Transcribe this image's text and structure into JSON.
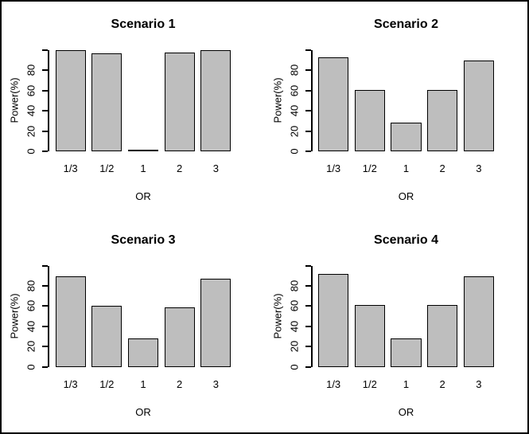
{
  "figure": {
    "background": "#ffffff",
    "frame_color": "#000000",
    "bar_fill": "#bebebe",
    "bar_border": "#000000",
    "text_color": "#000000"
  },
  "chart_data": [
    {
      "type": "bar",
      "title": "Scenario 1",
      "categories": [
        "1/3",
        "1/2",
        "1",
        "2",
        "3"
      ],
      "values": [
        100,
        97,
        1,
        98,
        100
      ],
      "xlabel": "OR",
      "ylabel": "Power(%)",
      "ylim": [
        0,
        100
      ],
      "yticks": [
        0,
        20,
        40,
        60,
        80
      ],
      "grid": false,
      "legend": null
    },
    {
      "type": "bar",
      "title": "Scenario 2",
      "categories": [
        "1/3",
        "1/2",
        "1",
        "2",
        "3"
      ],
      "values": [
        93,
        61,
        28,
        61,
        90
      ],
      "xlabel": "OR",
      "ylabel": "Power(%)",
      "ylim": [
        0,
        100
      ],
      "yticks": [
        0,
        20,
        40,
        60,
        80
      ],
      "grid": false,
      "legend": null
    },
    {
      "type": "bar",
      "title": "Scenario 3",
      "categories": [
        "1/3",
        "1/2",
        "1",
        "2",
        "3"
      ],
      "values": [
        89,
        60,
        28,
        59,
        87
      ],
      "xlabel": "OR",
      "ylabel": "Power(%)",
      "ylim": [
        0,
        100
      ],
      "yticks": [
        0,
        20,
        40,
        60,
        80
      ],
      "grid": false,
      "legend": null
    },
    {
      "type": "bar",
      "title": "Scenario 4",
      "categories": [
        "1/3",
        "1/2",
        "1",
        "2",
        "3"
      ],
      "values": [
        92,
        61,
        28,
        61,
        89
      ],
      "xlabel": "OR",
      "ylabel": "Power(%)",
      "ylim": [
        0,
        100
      ],
      "yticks": [
        0,
        20,
        40,
        60,
        80
      ],
      "grid": false,
      "legend": null
    }
  ]
}
